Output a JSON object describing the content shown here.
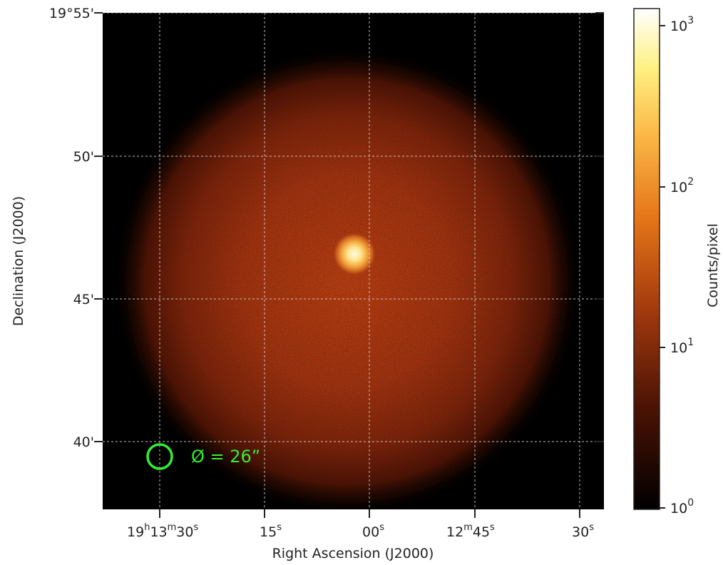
{
  "image": {
    "axes": {
      "xlabel": "Right Ascension (J2000)",
      "ylabel": "Declination (J2000)"
    },
    "ra_ticks": [
      {
        "h": "19",
        "m": "13",
        "s": "30",
        "label_parts": [
          "19",
          "h",
          "13",
          "m",
          "30",
          "s"
        ]
      },
      {
        "s": "15",
        "label_parts": [
          "15",
          "s"
        ]
      },
      {
        "s": "00",
        "label_parts": [
          "00",
          "s"
        ]
      },
      {
        "m": "12",
        "s": "45",
        "label_parts": [
          "12",
          "m",
          "45",
          "s"
        ]
      },
      {
        "s": "30",
        "label_parts": [
          "30",
          "s"
        ]
      }
    ],
    "dec_ticks": [
      "19°55'",
      "50'",
      "45'",
      "40'"
    ],
    "colorbar": {
      "label": "Counts/pixel",
      "scale": "log",
      "range": [
        1,
        1000
      ],
      "ticks": [
        {
          "base": "10",
          "exp": "0"
        },
        {
          "base": "10",
          "exp": "1"
        },
        {
          "base": "10",
          "exp": "2"
        },
        {
          "base": "10",
          "exp": "3"
        }
      ],
      "colormap": "afmhot"
    },
    "annotation": {
      "text": "Ø = 26”",
      "marker": "green-circle"
    },
    "colors": {
      "background": "#000000",
      "grid": "#dddddd",
      "annotation": "#33ee33"
    },
    "grid": true
  }
}
